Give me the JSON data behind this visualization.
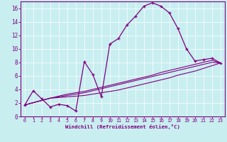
{
  "xlabel": "Windchill (Refroidissement éolien,°C)",
  "bg_color": "#c8eef0",
  "line_color": "#800080",
  "axis_color": "#800080",
  "xlim": [
    -0.5,
    23.5
  ],
  "ylim": [
    0,
    17
  ],
  "xticks": [
    0,
    1,
    2,
    3,
    4,
    5,
    6,
    7,
    8,
    9,
    10,
    11,
    12,
    13,
    14,
    15,
    16,
    17,
    18,
    19,
    20,
    21,
    22,
    23
  ],
  "yticks": [
    0,
    2,
    4,
    6,
    8,
    10,
    12,
    14,
    16
  ],
  "line1_x": [
    0,
    1,
    2,
    3,
    4,
    5,
    6,
    7,
    8,
    9,
    10,
    11,
    12,
    13,
    14,
    15,
    16,
    17,
    18,
    19,
    20,
    21,
    22,
    23
  ],
  "line1_y": [
    1.7,
    3.8,
    2.6,
    1.4,
    1.8,
    1.6,
    0.8,
    8.1,
    6.2,
    2.9,
    10.7,
    11.5,
    13.5,
    14.8,
    16.3,
    16.8,
    16.3,
    15.3,
    13.0,
    10.0,
    8.2,
    8.4,
    8.6,
    7.9
  ],
  "line2_x": [
    0,
    3,
    4,
    5,
    6,
    7,
    8,
    9,
    10,
    11,
    12,
    13,
    14,
    15,
    16,
    17,
    18,
    19,
    20,
    21,
    22,
    23
  ],
  "line2_y": [
    1.7,
    2.7,
    3.0,
    3.3,
    3.5,
    3.7,
    4.0,
    4.3,
    4.6,
    4.9,
    5.2,
    5.5,
    5.8,
    6.1,
    6.5,
    6.8,
    7.1,
    7.4,
    7.7,
    8.0,
    8.3,
    7.9
  ],
  "line3_x": [
    0,
    3,
    4,
    5,
    6,
    7,
    8,
    9,
    10,
    11,
    12,
    13,
    14,
    15,
    16,
    17,
    18,
    19,
    20,
    21,
    22,
    23
  ],
  "line3_y": [
    1.7,
    2.7,
    2.9,
    3.1,
    3.3,
    3.5,
    3.8,
    4.1,
    4.4,
    4.7,
    5.0,
    5.3,
    5.6,
    5.9,
    6.2,
    6.5,
    6.8,
    7.1,
    7.4,
    7.7,
    8.0,
    7.9
  ],
  "line4_x": [
    0,
    3,
    4,
    5,
    6,
    7,
    8,
    9,
    10,
    11,
    12,
    13,
    14,
    15,
    16,
    17,
    18,
    19,
    20,
    21,
    22,
    23
  ],
  "line4_y": [
    1.7,
    2.7,
    2.8,
    2.9,
    3.0,
    3.1,
    3.3,
    3.5,
    3.7,
    3.9,
    4.2,
    4.5,
    4.8,
    5.1,
    5.4,
    5.7,
    6.1,
    6.4,
    6.7,
    7.1,
    7.5,
    7.9
  ]
}
